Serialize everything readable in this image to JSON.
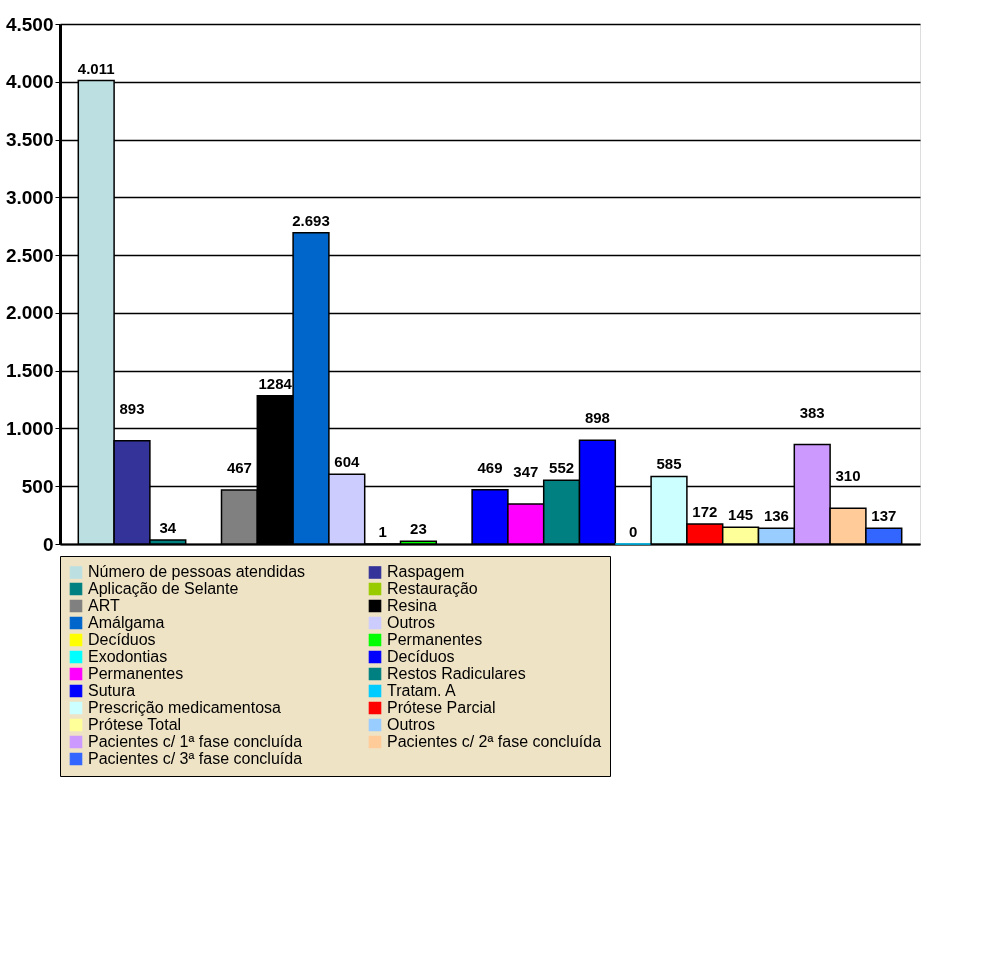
{
  "chart_data": {
    "type": "bar",
    "categories": [
      null
    ],
    "series": [
      {
        "name": "Número de pessoas atendidas",
        "color": "#bce0e2",
        "values": [
          4011
        ],
        "value_labels": [
          "4.011"
        ]
      },
      {
        "name": "Raspagem",
        "color": "#333399",
        "values": [
          893
        ],
        "value_labels": [
          "893"
        ]
      },
      {
        "name": "Aplicação de Selante",
        "color": "#008080",
        "values": [
          34
        ],
        "value_labels": [
          "34"
        ]
      },
      {
        "name": "Restauração",
        "color": "#99cc00",
        "values": [
          null
        ],
        "value_labels": [
          null
        ]
      },
      {
        "name": "ART",
        "color": "#808080",
        "values": [
          467
        ],
        "value_labels": [
          "467"
        ]
      },
      {
        "name": "Resina",
        "color": "#000000",
        "values": [
          1284
        ],
        "value_labels": [
          "1284"
        ]
      },
      {
        "name": "Amálgama",
        "color": "#0066cc",
        "values": [
          2693
        ],
        "value_labels": [
          "2.693"
        ]
      },
      {
        "name": "Outros",
        "color": "#ccccff",
        "values": [
          604
        ],
        "value_labels": [
          "604"
        ]
      },
      {
        "name": "Decíduos",
        "color": "#ffff00",
        "values": [
          1
        ],
        "value_labels": [
          "1"
        ]
      },
      {
        "name": "Permanentes",
        "color": "#00ff00",
        "values": [
          23
        ],
        "value_labels": [
          "23"
        ]
      },
      {
        "name": "Exodontias",
        "color": "#00ffff",
        "values": [
          null
        ],
        "value_labels": [
          null
        ]
      },
      {
        "name": "Decíduos",
        "color": "#0000ff",
        "values": [
          469
        ],
        "value_labels": [
          "469"
        ]
      },
      {
        "name": "Permanentes",
        "color": "#ff00ff",
        "values": [
          347
        ],
        "value_labels": [
          "347"
        ]
      },
      {
        "name": "Restos Radiculares",
        "color": "#008080",
        "values": [
          552
        ],
        "value_labels": [
          "552"
        ]
      },
      {
        "name": "Sutura",
        "color": "#0000ff",
        "values": [
          898
        ],
        "value_labels": [
          "898"
        ]
      },
      {
        "name": "Tratam. A",
        "color": "#00ccff",
        "values": [
          0
        ],
        "value_labels": [
          "0"
        ]
      },
      {
        "name": "Prescrição medicamentosa",
        "color": "#ccffff",
        "values": [
          585
        ],
        "value_labels": [
          "585"
        ]
      },
      {
        "name": "Prótese Parcial",
        "color": "#ff0000",
        "values": [
          172
        ],
        "value_labels": [
          "172"
        ]
      },
      {
        "name": "Prótese Total",
        "color": "#ffff99",
        "values": [
          145
        ],
        "value_labels": [
          "145"
        ]
      },
      {
        "name": "Outros",
        "color": "#99ccff",
        "values": [
          136
        ],
        "value_labels": [
          "136"
        ]
      },
      {
        "name": "Pacientes c/ 1ª fase concluída",
        "color": "#cc99ff",
        "values": [
          860
        ],
        "value_labels": [
          null
        ]
      },
      {
        "name": "Pacientes c/ 2ª fase concluída",
        "color": "#ffcc99",
        "values": [
          310
        ],
        "value_labels": [
          "310"
        ]
      },
      {
        "name": "Pacientes c/ 3ª fase concluída",
        "color": "#3366ff",
        "values": [
          137
        ],
        "value_labels": [
          "137"
        ]
      }
    ],
    "ylim": [
      0,
      4500
    ],
    "yticks": [
      0,
      500,
      {
        "value": 1000,
        "label": "1.000"
      },
      {
        "value": 1500,
        "label": "1.500"
      },
      {
        "value": 2000,
        "label": "2.000"
      },
      {
        "value": 2500,
        "label": "2.500"
      },
      {
        "value": 3000,
        "label": "3.000"
      },
      {
        "value": 3500,
        "label": "3.500"
      },
      {
        "value": 4000,
        "label": "4.000"
      },
      {
        "value": 4500,
        "label": "4.500"
      }
    ],
    "annotations": [
      {
        "text": "383",
        "y": 860
      }
    ],
    "grid": "y",
    "legend": "bottom",
    "tick_labels": "y"
  }
}
